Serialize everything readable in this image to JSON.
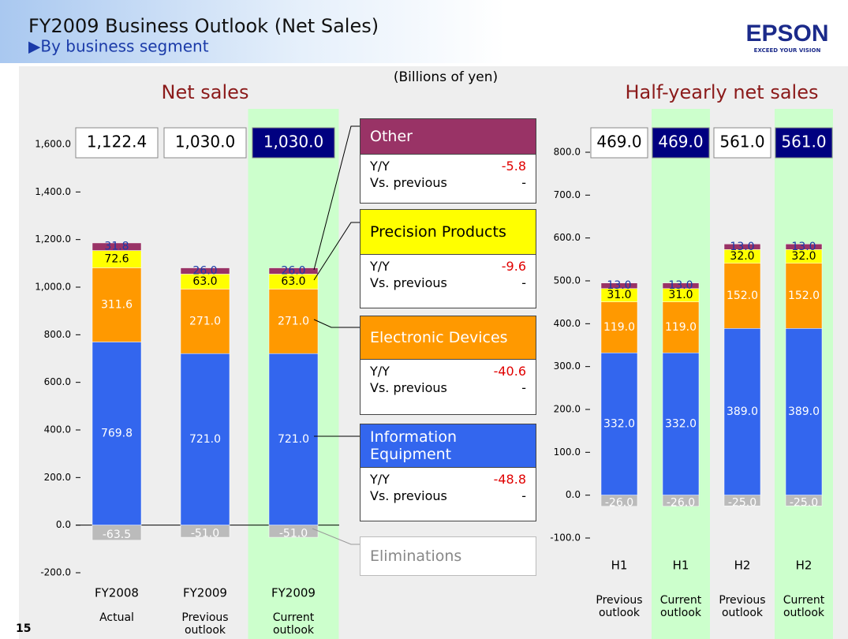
{
  "header": {
    "title": "FY2009 Business Outlook (Net Sales)",
    "subtitle": "▶By business segment",
    "logo": "EPSON",
    "tagline": "EXCEED YOUR VISION",
    "unit": "(Billions of yen)",
    "page": "15"
  },
  "chart_data": [
    {
      "type": "bar",
      "stacked": true,
      "title": "Net sales",
      "categories": [
        "FY2008",
        "FY2009",
        "FY2009"
      ],
      "sublabels": [
        "Actual",
        "Previous outlook",
        "Current outlook"
      ],
      "highlight": [
        false,
        false,
        true
      ],
      "totals": [
        1122.4,
        1030.0,
        1030.0
      ],
      "total_labels": [
        "1,122.4",
        "1,030.0",
        "1,030.0"
      ],
      "series": [
        {
          "name": "Information Equipment",
          "color": "#3366ee",
          "values": [
            769.8,
            721.0,
            721.0
          ],
          "value_labels": [
            "769.8",
            "721.0",
            "721.0"
          ]
        },
        {
          "name": "Electronic Devices",
          "color": "#ff9900",
          "values": [
            311.6,
            271.0,
            271.0
          ],
          "value_labels": [
            "311.6",
            "271.0",
            "271.0"
          ]
        },
        {
          "name": "Precision Products",
          "color": "#ffff00",
          "values": [
            72.6,
            63.0,
            63.0
          ],
          "value_labels": [
            "72.6",
            "63.0",
            "63.0"
          ]
        },
        {
          "name": "Other",
          "color": "#993366",
          "values": [
            31.8,
            26.0,
            26.0
          ],
          "value_labels": [
            "31.8",
            "26.0",
            "26.0"
          ]
        },
        {
          "name": "Eliminations",
          "color": "#bbbbbb",
          "values": [
            -63.5,
            -51.0,
            -51.0
          ],
          "value_labels": [
            "-63.5",
            "-51.0",
            "-51.0"
          ]
        }
      ],
      "ylim": [
        -200,
        1600
      ],
      "yticks": [
        {
          "value": -200,
          "label": "-200.0"
        },
        {
          "value": 0,
          "label": "0.0"
        },
        {
          "value": 200,
          "label": "200.0"
        },
        {
          "value": 400,
          "label": "400.0"
        },
        {
          "value": 600,
          "label": "600.0"
        },
        {
          "value": 800,
          "label": "800.0"
        },
        {
          "value": 1000,
          "label": "1,000.0"
        },
        {
          "value": 1200,
          "label": "1,200.0"
        },
        {
          "value": 1400,
          "label": "1,400.0"
        },
        {
          "value": 1600,
          "label": "1,600.0"
        }
      ]
    },
    {
      "type": "bar",
      "stacked": true,
      "title": "Half-yearly net sales",
      "categories": [
        "H1",
        "H1",
        "H2",
        "H2"
      ],
      "sublabels": [
        "Previous outlook",
        "Current outlook",
        "Previous outlook",
        "Current outlook"
      ],
      "highlight": [
        false,
        true,
        false,
        true
      ],
      "totals": [
        469.0,
        469.0,
        561.0,
        561.0
      ],
      "total_labels": [
        "469.0",
        "469.0",
        "561.0",
        "561.0"
      ],
      "series": [
        {
          "name": "Information Equipment",
          "color": "#3366ee",
          "values": [
            332.0,
            332.0,
            389.0,
            389.0
          ],
          "value_labels": [
            "332.0",
            "332.0",
            "389.0",
            "389.0"
          ]
        },
        {
          "name": "Electronic Devices",
          "color": "#ff9900",
          "values": [
            119.0,
            119.0,
            152.0,
            152.0
          ],
          "value_labels": [
            "119.0",
            "119.0",
            "152.0",
            "152.0"
          ]
        },
        {
          "name": "Precision Products",
          "color": "#ffff00",
          "values": [
            31.0,
            31.0,
            32.0,
            32.0
          ],
          "value_labels": [
            "31.0",
            "31.0",
            "32.0",
            "32.0"
          ]
        },
        {
          "name": "Other",
          "color": "#993366",
          "values": [
            13.0,
            13.0,
            13.0,
            13.0
          ],
          "value_labels": [
            "13.0",
            "13.0",
            "13.0",
            "13.0"
          ]
        },
        {
          "name": "Eliminations",
          "color": "#bbbbbb",
          "values": [
            -26.0,
            -26.0,
            -25.0,
            -25.0
          ],
          "value_labels": [
            "-26.0",
            "-26.0",
            "-25.0",
            "-25.0"
          ]
        }
      ],
      "ylim": [
        -100,
        800
      ],
      "yticks": [
        {
          "value": -100,
          "label": "-100.0"
        },
        {
          "value": 0,
          "label": "0.0"
        },
        {
          "value": 100,
          "label": "100.0"
        },
        {
          "value": 200,
          "label": "200.0"
        },
        {
          "value": 300,
          "label": "300.0"
        },
        {
          "value": 400,
          "label": "400.0"
        },
        {
          "value": 500,
          "label": "500.0"
        },
        {
          "value": 600,
          "label": "600.0"
        },
        {
          "value": 700,
          "label": "700.0"
        },
        {
          "value": 800,
          "label": "800.0"
        }
      ]
    }
  ],
  "segment_notes": [
    {
      "name": "Other",
      "yy_label": "Y/Y",
      "yy": -5.8,
      "vs_label": "Vs. previous",
      "vs": "-"
    },
    {
      "name": "Precision Products",
      "yy_label": "Y/Y",
      "yy": -9.6,
      "vs_label": "Vs. previous",
      "vs": "-"
    },
    {
      "name": "Electronic Devices",
      "yy_label": "Y/Y",
      "yy": -40.6,
      "vs_label": "Vs. previous",
      "vs": "-"
    },
    {
      "name": "Information Equipment",
      "yy_label": "Y/Y",
      "yy": -48.8,
      "vs_label": "Vs. previous",
      "vs": "-"
    },
    {
      "name": "Eliminations"
    }
  ]
}
